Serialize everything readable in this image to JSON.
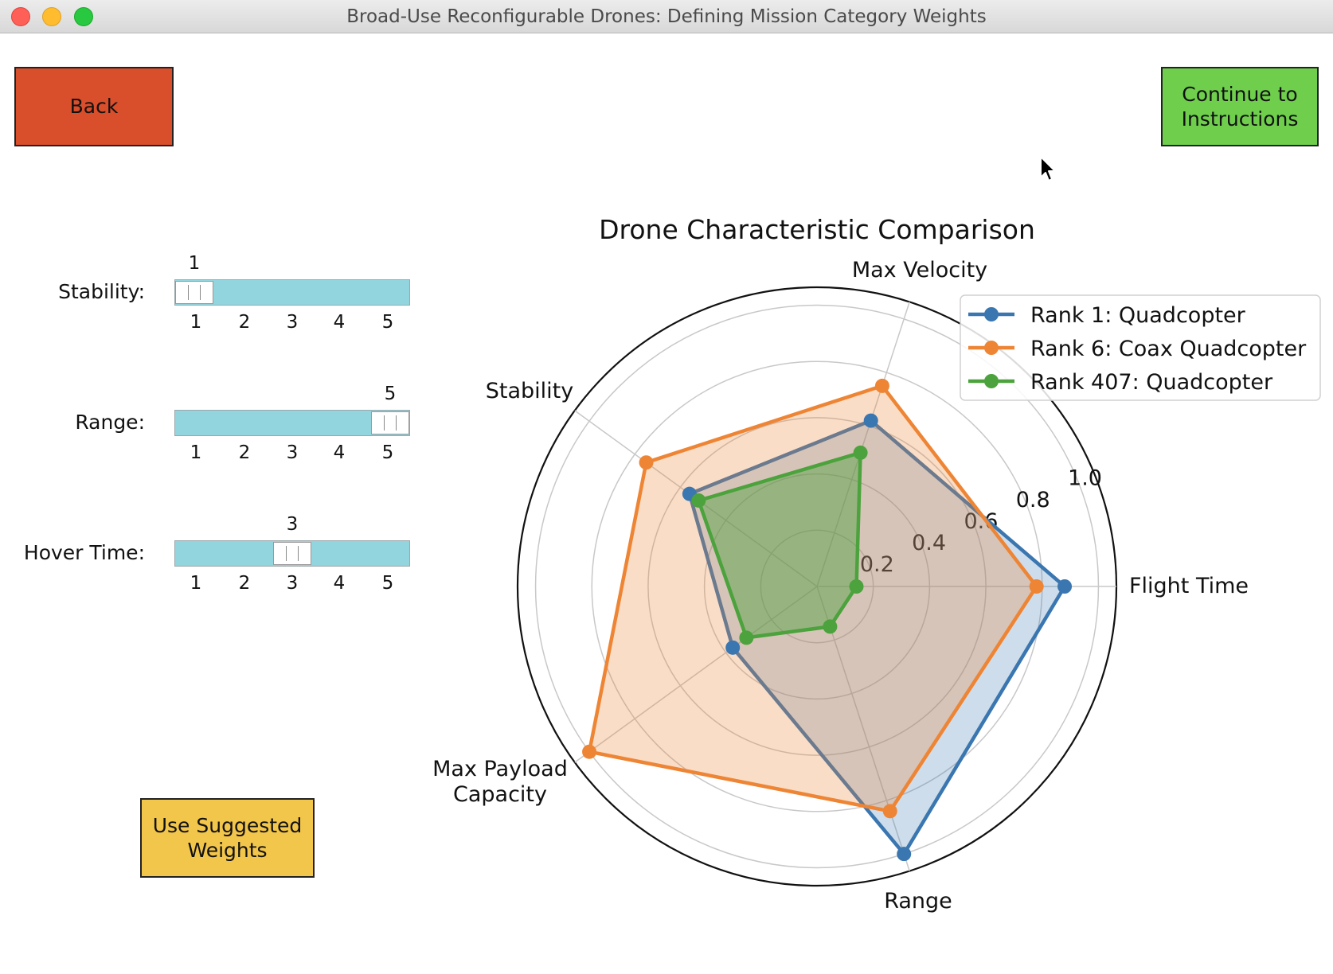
{
  "window": {
    "title": "Broad-Use Reconfigurable Drones: Defining Mission Category Weights"
  },
  "buttons": {
    "back": "Back",
    "continue": "Continue to\nInstructions",
    "suggested": "Use Suggested\nWeights"
  },
  "sliders": [
    {
      "label": "Stability:",
      "value": 1,
      "ticks": [
        "1",
        "2",
        "3",
        "4",
        "5"
      ]
    },
    {
      "label": "Range:",
      "value": 5,
      "ticks": [
        "1",
        "2",
        "3",
        "4",
        "5"
      ]
    },
    {
      "label": "Hover Time:",
      "value": 3,
      "ticks": [
        "1",
        "2",
        "3",
        "4",
        "5"
      ]
    }
  ],
  "colors": {
    "back_button": "#d94e2b",
    "continue_button": "#6fcf4d",
    "suggested_button": "#f2c54b",
    "slider_track": "#92d5df"
  },
  "chart_data": {
    "type": "radar",
    "title": "Drone Characteristic Comparison",
    "axes": [
      "Flight Time",
      "Max Velocity",
      "Stability",
      "Max Payload\nCapacity",
      "Range"
    ],
    "radial_ticks": [
      "0.2",
      "0.4",
      "0.6",
      "0.8",
      "1.0"
    ],
    "rlim": [
      0,
      1.0
    ],
    "legend_position": "top-right",
    "series": [
      {
        "name": "Rank 1: Quadcopter",
        "color": "#3a76b0",
        "values": [
          0.88,
          0.62,
          0.56,
          0.37,
          1.0
        ]
      },
      {
        "name": "Rank 6: Coax Quadcopter",
        "color": "#ee8535",
        "values": [
          0.78,
          0.75,
          0.75,
          1.0,
          0.84
        ]
      },
      {
        "name": "Rank 407: Quadcopter",
        "color": "#4ca23c",
        "values": [
          0.14,
          0.5,
          0.52,
          0.31,
          0.15
        ]
      }
    ]
  }
}
